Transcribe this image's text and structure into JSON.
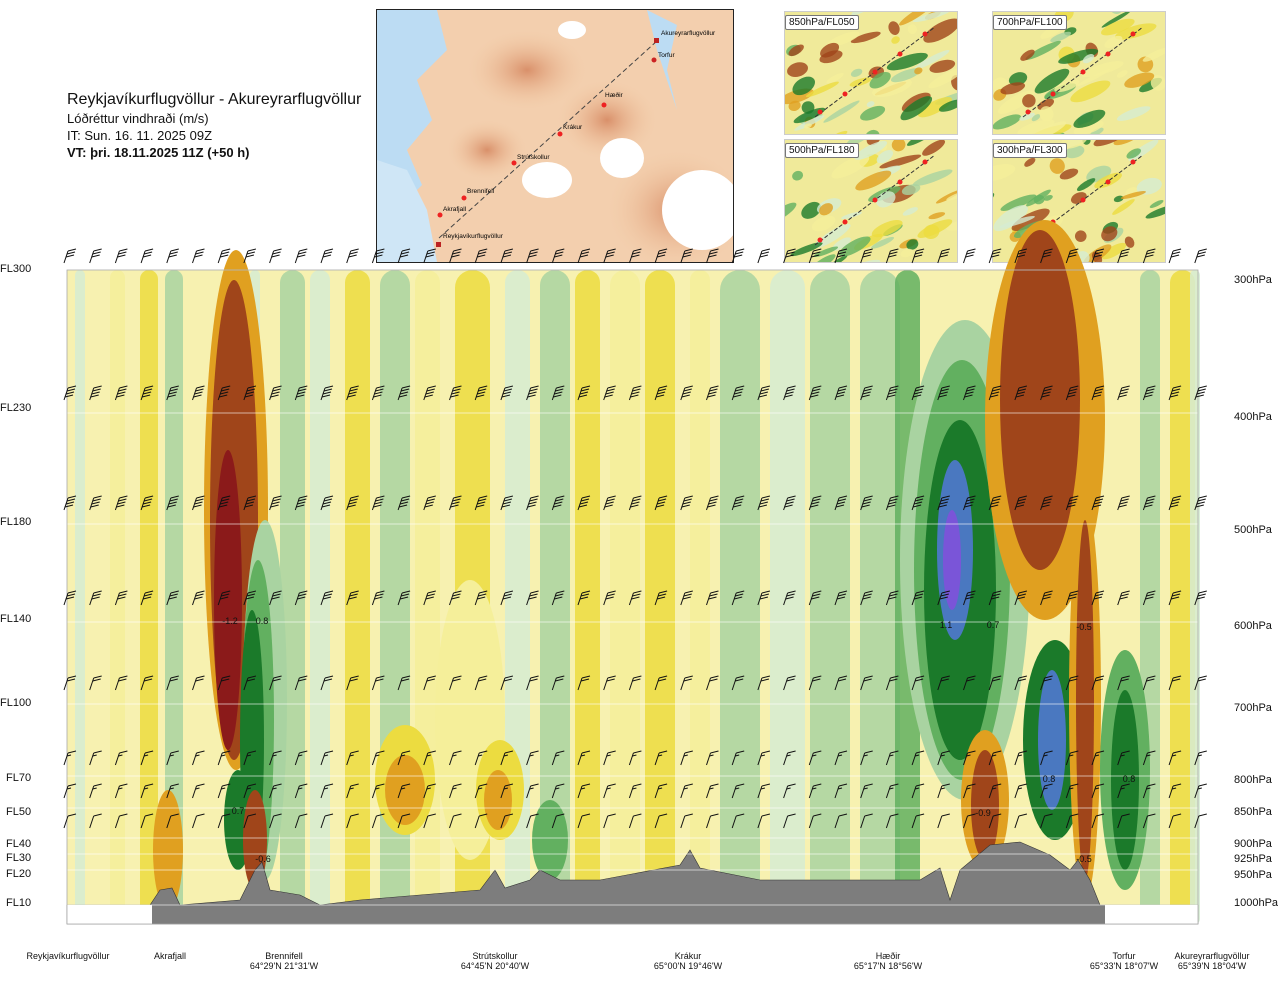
{
  "header": {
    "route": "Reykjavíkurflugvöllur - Akureyrarflugvöllur",
    "variable": "Lóðréttur vindhraði (m/s)",
    "issue_time": "IT: Sun. 16. 11. 2025 09Z",
    "valid_time": "VT: þri. 18.11.2025 11Z (+50 h)"
  },
  "map": {
    "waypoints": [
      "Akureyrarflugvöllur",
      "Torfur",
      "Hæðir",
      "Krákur",
      "Strútskollur",
      "Brennifell",
      "Akrafjall",
      "Reykjavíkurflugvöllur"
    ]
  },
  "thumbnails": [
    {
      "label": "850hPa/FL050"
    },
    {
      "label": "700hPa/FL100"
    },
    {
      "label": "500hPa/FL180"
    },
    {
      "label": "300hPa/FL300"
    }
  ],
  "flight_levels": [
    "FL300",
    "FL230",
    "FL180",
    "FL140",
    "FL100",
    "FL70",
    "FL50",
    "FL40",
    "FL30",
    "FL20",
    "FL10"
  ],
  "pressure_levels": [
    "300hPa",
    "400hPa",
    "500hPa",
    "600hPa",
    "700hPa",
    "800hPa",
    "850hPa",
    "900hPa",
    "925hPa",
    "950hPa",
    "1000hPa"
  ],
  "stations": [
    {
      "name": "Reykjavíkurflugvöllur",
      "coord": ""
    },
    {
      "name": "Akrafjall",
      "coord": ""
    },
    {
      "name": "Brennifell",
      "coord": "64°29'N 21°31'W"
    },
    {
      "name": "Strútskollur",
      "coord": "64°45'N 20°40'W"
    },
    {
      "name": "Krákur",
      "coord": "65°00'N 19°46'W"
    },
    {
      "name": "Hæðir",
      "coord": "65°17'N 18°56'W"
    },
    {
      "name": "Torfur",
      "coord": "65°33'N 18°07'W"
    },
    {
      "name": "Akureyrarflugvöllur",
      "coord": "65°39'N 18°04'W"
    }
  ],
  "colors": {
    "strong_down": "#8b1a1a",
    "down2": "#a0451a",
    "down3": "#e0a020",
    "down4": "#ecdc40",
    "down5": "#f5ef9a",
    "neutral": "#ffffff",
    "up1": "#d6ecd2",
    "up2": "#a9d3a1",
    "up3": "#62b060",
    "up4": "#1b7a2a",
    "up5": "#4a78c0",
    "up6": "#7a55d8",
    "terrain": "#7d7d7d"
  },
  "chart_data": {
    "type": "heatmap",
    "title": "Lóðréttur vindhraði (m/s)",
    "xlabel": "",
    "ylabel": "",
    "x_stations": [
      "Reykjavíkurflugvöllur",
      "Akrafjall",
      "Brennifell",
      "Strútskollur",
      "Krákur",
      "Hæðir",
      "Torfur",
      "Akureyrarflugvöllur"
    ],
    "y_pressure_hPa": [
      300,
      400,
      500,
      600,
      700,
      800,
      850,
      900,
      925,
      950,
      1000
    ],
    "extrema_labels": [
      {
        "value": "-1.2",
        "level_hPa": 600,
        "near": "Brennifell"
      },
      {
        "value": "0.8",
        "level_hPa": 600,
        "near": "Brennifell"
      },
      {
        "value": "0.7",
        "level_hPa": 850,
        "near": "Brennifell"
      },
      {
        "value": "-0.6",
        "level_hPa": 925,
        "near": "Brennifell"
      },
      {
        "value": "1.1",
        "level_hPa": 600,
        "near": "Hæðir"
      },
      {
        "value": "0.7",
        "level_hPa": 600,
        "near": "Hæðir"
      },
      {
        "value": "-0.5",
        "level_hPa": 600,
        "near": "Torfur"
      },
      {
        "value": "-0.9",
        "level_hPa": 850,
        "near": "Hæðir"
      },
      {
        "value": "0.8",
        "level_hPa": 800,
        "near": "Hæðir"
      },
      {
        "value": "0.8",
        "level_hPa": 800,
        "near": "Torfur"
      },
      {
        "value": "-0.5",
        "level_hPa": 925,
        "near": "Torfur"
      }
    ],
    "wind_barb_levels_hPa": [
      300,
      400,
      500,
      600,
      700,
      800,
      850,
      900
    ]
  }
}
